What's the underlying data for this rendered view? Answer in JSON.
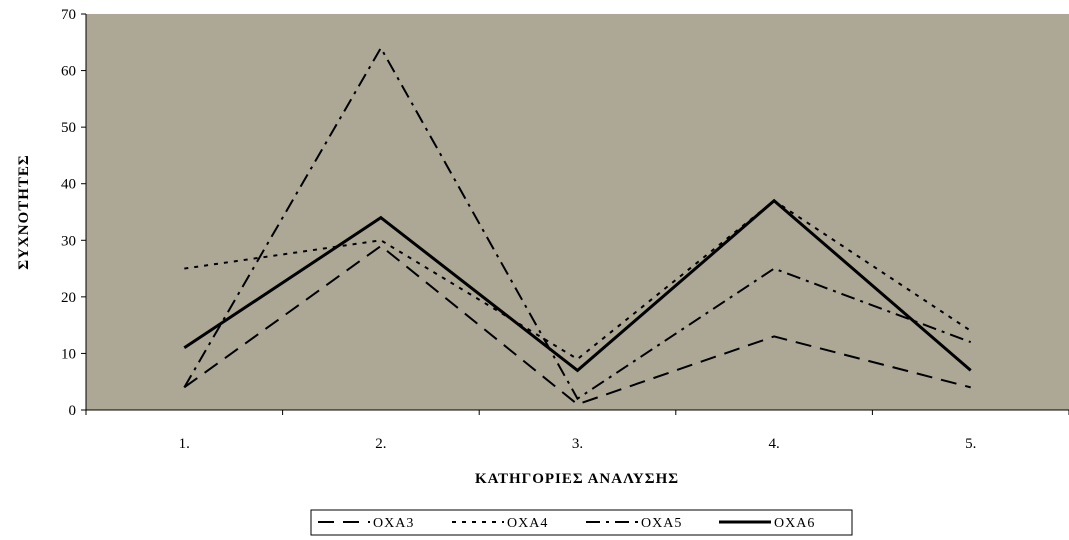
{
  "chart_data": {
    "type": "line",
    "title": "",
    "xlabel": "ΚΑΤΗΓΟΡΙΕΣ ΑΝΑΛΥΣΗΣ",
    "ylabel": "ΣΥΧΝΟΤΗΤΕΣ",
    "categories": [
      "1.",
      "2.",
      "3.",
      "4.",
      "5."
    ],
    "ylim": [
      0,
      70
    ],
    "yticks": [
      0,
      10,
      20,
      30,
      40,
      50,
      60,
      70
    ],
    "grid": false,
    "plot_background": "#ADA796",
    "legend_position": "bottom",
    "series": [
      {
        "name": "ΟΧΑ3",
        "values": [
          4,
          29,
          1,
          13,
          4
        ],
        "dash": "long-dash",
        "color": "#000000"
      },
      {
        "name": "ΟΧΑ4",
        "values": [
          25,
          30,
          9,
          37,
          14
        ],
        "dash": "dot",
        "color": "#000000"
      },
      {
        "name": "ΟΧΑ5",
        "values": [
          4,
          64,
          2,
          25,
          12
        ],
        "dash": "dash-dot",
        "color": "#000000"
      },
      {
        "name": "ΟΧΑ6",
        "values": [
          11,
          34,
          7,
          37,
          7
        ],
        "dash": "solid",
        "color": "#000000"
      }
    ]
  }
}
